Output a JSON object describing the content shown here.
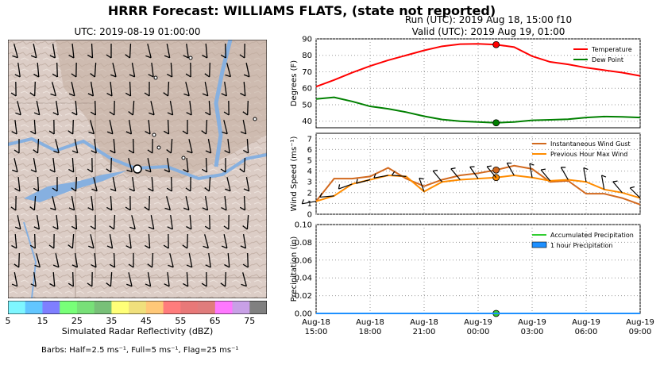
{
  "figure": {
    "suptitle": "HRRR Forecast: WILLIAMS FLATS, (state not reported)",
    "run_text": "Run (UTC): 2019 Aug 18, 15:00 f10",
    "valid_text": "Valid (UTC): 2019 Aug 19, 01:00"
  },
  "map": {
    "title": "UTC: 2019-08-19 01:00:00",
    "colorbar_title": "Simulated Radar Reflectivity (dBZ)",
    "colorbar_ticks": [
      "5",
      "15",
      "25",
      "35",
      "45",
      "55",
      "65",
      "75"
    ],
    "colorbar_colors": [
      "#7ef6ff",
      "#62c6ff",
      "#7f7fff",
      "#78ff78",
      "#78e078",
      "#78c078",
      "#ffff78",
      "#f0e07c",
      "#ffc878",
      "#ff7c7c",
      "#e87878",
      "#e07c7c",
      "#ff78ff",
      "#c8a0e6",
      "#808080"
    ],
    "barbs_note": "Barbs: Half=2.5 ms⁻¹, Full=5 ms⁻¹, Flag=25 ms⁻¹",
    "terrain_color": "#d8c8c0",
    "water_color": "#86b0e0"
  },
  "chart_data": [
    {
      "type": "line",
      "ylabel": "Degrees (F)",
      "ylim": [
        36,
        90
      ],
      "yticks": [
        "40",
        "50",
        "60",
        "70",
        "80",
        "90"
      ],
      "x": [
        "2019-08-18 15:00",
        "2019-08-18 16:00",
        "2019-08-18 17:00",
        "2019-08-18 18:00",
        "2019-08-18 19:00",
        "2019-08-18 20:00",
        "2019-08-18 21:00",
        "2019-08-18 22:00",
        "2019-08-18 23:00",
        "2019-08-19 00:00",
        "2019-08-19 01:00",
        "2019-08-19 02:00",
        "2019-08-19 03:00",
        "2019-08-19 04:00",
        "2019-08-19 05:00",
        "2019-08-19 06:00",
        "2019-08-19 07:00",
        "2019-08-19 08:00",
        "2019-08-19 09:00"
      ],
      "series": [
        {
          "name": "Temperature",
          "color": "#ff0000",
          "values": [
            61,
            65,
            69.5,
            73.5,
            77,
            80,
            83,
            85.5,
            86.8,
            87,
            86.5,
            85,
            79.5,
            76,
            74.5,
            72.5,
            71,
            69.5,
            67.5
          ]
        },
        {
          "name": "Dew Point",
          "color": "#008000",
          "values": [
            53.5,
            54.5,
            52,
            49,
            47.5,
            45.5,
            43,
            41,
            40,
            39.5,
            39,
            39.5,
            40.5,
            40.8,
            41.2,
            42.2,
            42.8,
            42.6,
            42.2
          ]
        }
      ],
      "highlight_x": "2019-08-19 01:00",
      "grid": true,
      "legend": "top-right"
    },
    {
      "type": "line",
      "ylabel": "Wind Speed (ms⁻¹)",
      "ylim": [
        0,
        7.5
      ],
      "yticks": [
        "0",
        "1",
        "2",
        "3",
        "4",
        "5",
        "6",
        "7"
      ],
      "series": [
        {
          "name": "Instantaneous Wind Gust",
          "color": "#d2691e",
          "values": [
            1.2,
            3.3,
            3.3,
            3.5,
            4.3,
            3.3,
            2.6,
            3.2,
            3.6,
            3.8,
            4.1,
            4.5,
            4.2,
            3,
            3.1,
            1.9,
            1.9,
            1.5,
            0.9
          ]
        },
        {
          "name": "Previous Hour Max Wind",
          "color": "#ff8c00",
          "values": [
            1.2,
            1.7,
            2.8,
            3.2,
            3.6,
            3.5,
            2.1,
            3,
            3.2,
            3.3,
            3.4,
            3.6,
            3.4,
            3.1,
            3.2,
            3,
            2.3,
            2,
            1.5
          ]
        }
      ],
      "highlight_x": "2019-08-19 01:00",
      "grid": true,
      "legend": "top-right"
    },
    {
      "type": "line",
      "ylabel": "Precipitation (in)",
      "ylim": [
        0,
        0.1
      ],
      "yticks": [
        "0.00",
        "0.02",
        "0.04",
        "0.06",
        "0.08",
        "0.10"
      ],
      "series": [
        {
          "name": "Accumulated Precipitation",
          "color": "#32cd32",
          "values": [
            0,
            0,
            0,
            0,
            0,
            0,
            0,
            0,
            0,
            0,
            0,
            0,
            0,
            0,
            0,
            0,
            0,
            0,
            0
          ]
        },
        {
          "name": "1 hour Precipitation",
          "color": "#1e90ff",
          "values": [
            0,
            0,
            0,
            0,
            0,
            0,
            0,
            0,
            0,
            0,
            0,
            0,
            0,
            0,
            0,
            0,
            0,
            0,
            0
          ]
        }
      ],
      "highlight_x": "2019-08-19 01:00",
      "grid": true,
      "legend": "top-right",
      "xtick_labels": [
        [
          "Aug-18",
          "15:00"
        ],
        [
          "Aug-18",
          "18:00"
        ],
        [
          "Aug-18",
          "21:00"
        ],
        [
          "Aug-19",
          "00:00"
        ],
        [
          "Aug-19",
          "03:00"
        ],
        [
          "Aug-19",
          "06:00"
        ],
        [
          "Aug-19",
          "09:00"
        ]
      ]
    }
  ]
}
